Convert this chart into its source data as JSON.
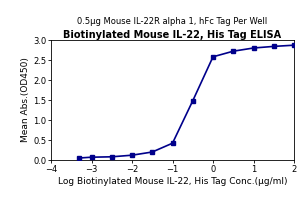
{
  "title": "Biotinylated Mouse IL-22, His Tag ELISA",
  "subtitle": "0.5μg Mouse IL-22R alpha 1, hFc Tag Per Well",
  "xlabel": "Log Biotinylated Mouse IL-22, His Tag Conc.(μg/ml)",
  "ylabel": "Mean Abs.(OD450)",
  "xlim": [
    -4,
    2
  ],
  "ylim": [
    0,
    3.0
  ],
  "xticks": [
    -4,
    -3,
    -2,
    -1,
    0,
    1,
    2
  ],
  "yticks": [
    0.0,
    0.5,
    1.0,
    1.5,
    2.0,
    2.5,
    3.0
  ],
  "data_x": [
    -3.3,
    -3.0,
    -2.5,
    -2.0,
    -1.5,
    -1.0,
    -0.5,
    0.0,
    0.5,
    1.0,
    1.5,
    2.0
  ],
  "data_y": [
    0.05,
    0.07,
    0.08,
    0.12,
    0.2,
    0.42,
    1.48,
    2.58,
    2.72,
    2.8,
    2.84,
    2.87
  ],
  "line_color": "#00008B",
  "marker_color": "#00008B",
  "background_color": "#ffffff",
  "title_fontsize": 7.0,
  "subtitle_fontsize": 6.0,
  "label_fontsize": 6.5,
  "tick_fontsize": 6.0
}
